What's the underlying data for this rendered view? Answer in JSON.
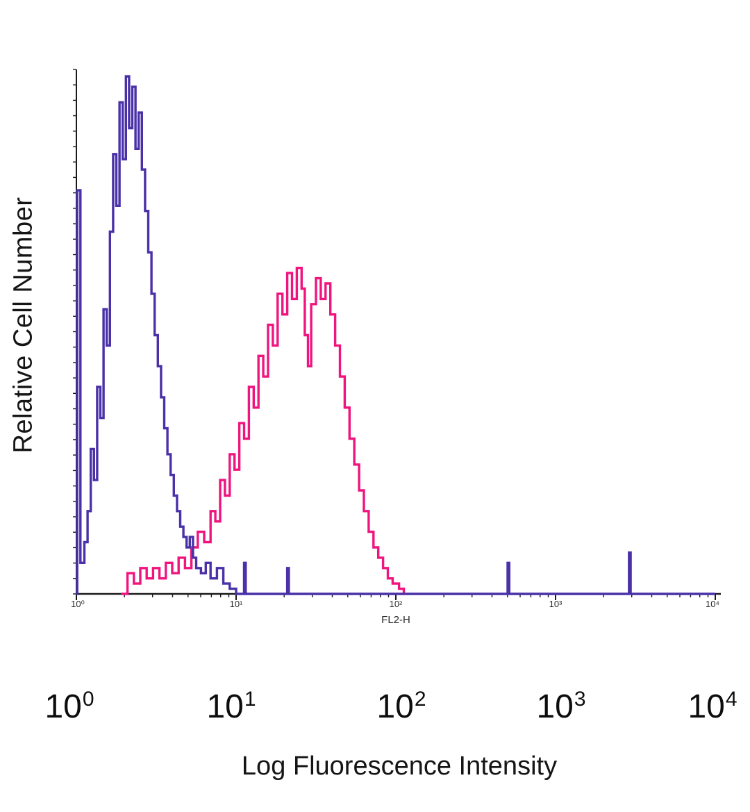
{
  "figure": {
    "ylabel": "Relative Cell Number",
    "xlabel": "Log Fluorescence Intensity",
    "inner_axis_label": "FL2-H",
    "inner_ticks": [
      "10⁰",
      "10¹",
      "10²",
      "10³",
      "10⁴"
    ],
    "outer_ticks": [
      {
        "base": "10",
        "exp": "0"
      },
      {
        "base": "10",
        "exp": "1"
      },
      {
        "base": "10",
        "exp": "2"
      },
      {
        "base": "10",
        "exp": "3"
      },
      {
        "base": "10",
        "exp": "4"
      }
    ]
  },
  "chart_data": {
    "type": "line",
    "subtype": "flow-cytometry-histogram-overlay",
    "title": "",
    "xlabel": "Log Fluorescence Intensity",
    "ylabel": "Relative Cell Number",
    "xscale": "log10",
    "xlim": [
      1,
      10000
    ],
    "ylim": [
      0,
      1
    ],
    "grid": false,
    "legend": "none",
    "axis_color": "#1a1a1a",
    "series": [
      {
        "name": "pink-histogram",
        "color": "#F0147E",
        "peak_x_log10": 1.4,
        "peak_height": 0.64,
        "points": [
          [
            0.28,
            0.0
          ],
          [
            0.32,
            0.04
          ],
          [
            0.36,
            0.02
          ],
          [
            0.4,
            0.05
          ],
          [
            0.44,
            0.03
          ],
          [
            0.48,
            0.05
          ],
          [
            0.52,
            0.03
          ],
          [
            0.56,
            0.06
          ],
          [
            0.6,
            0.04
          ],
          [
            0.64,
            0.07
          ],
          [
            0.68,
            0.05
          ],
          [
            0.72,
            0.09
          ],
          [
            0.76,
            0.12
          ],
          [
            0.8,
            0.1
          ],
          [
            0.84,
            0.16
          ],
          [
            0.87,
            0.14
          ],
          [
            0.9,
            0.22
          ],
          [
            0.93,
            0.19
          ],
          [
            0.96,
            0.27
          ],
          [
            0.99,
            0.24
          ],
          [
            1.02,
            0.33
          ],
          [
            1.05,
            0.3
          ],
          [
            1.08,
            0.4
          ],
          [
            1.11,
            0.36
          ],
          [
            1.14,
            0.46
          ],
          [
            1.17,
            0.42
          ],
          [
            1.2,
            0.52
          ],
          [
            1.23,
            0.48
          ],
          [
            1.26,
            0.58
          ],
          [
            1.29,
            0.54
          ],
          [
            1.32,
            0.62
          ],
          [
            1.35,
            0.57
          ],
          [
            1.38,
            0.63
          ],
          [
            1.41,
            0.59
          ],
          [
            1.43,
            0.5
          ],
          [
            1.45,
            0.44
          ],
          [
            1.47,
            0.56
          ],
          [
            1.5,
            0.61
          ],
          [
            1.53,
            0.57
          ],
          [
            1.56,
            0.6
          ],
          [
            1.59,
            0.54
          ],
          [
            1.62,
            0.48
          ],
          [
            1.65,
            0.42
          ],
          [
            1.68,
            0.36
          ],
          [
            1.71,
            0.3
          ],
          [
            1.74,
            0.25
          ],
          [
            1.77,
            0.2
          ],
          [
            1.8,
            0.16
          ],
          [
            1.83,
            0.12
          ],
          [
            1.86,
            0.09
          ],
          [
            1.89,
            0.07
          ],
          [
            1.92,
            0.05
          ],
          [
            1.95,
            0.03
          ],
          [
            1.98,
            0.02
          ],
          [
            2.02,
            0.01
          ],
          [
            2.05,
            0.0
          ]
        ]
      },
      {
        "name": "purple-histogram",
        "color": "#4A31A8",
        "peak_x_log10": 0.35,
        "peak_height": 1.0,
        "points": [
          [
            0.0,
            0.0
          ],
          [
            0.005,
            0.78
          ],
          [
            0.02,
            0.78
          ],
          [
            0.025,
            0.06
          ],
          [
            0.05,
            0.1
          ],
          [
            0.07,
            0.16
          ],
          [
            0.09,
            0.28
          ],
          [
            0.11,
            0.22
          ],
          [
            0.13,
            0.4
          ],
          [
            0.15,
            0.34
          ],
          [
            0.17,
            0.55
          ],
          [
            0.19,
            0.48
          ],
          [
            0.21,
            0.7
          ],
          [
            0.23,
            0.85
          ],
          [
            0.25,
            0.75
          ],
          [
            0.27,
            0.95
          ],
          [
            0.29,
            0.84
          ],
          [
            0.31,
            1.0
          ],
          [
            0.33,
            0.9
          ],
          [
            0.35,
            0.98
          ],
          [
            0.37,
            0.86
          ],
          [
            0.39,
            0.93
          ],
          [
            0.41,
            0.82
          ],
          [
            0.43,
            0.74
          ],
          [
            0.45,
            0.66
          ],
          [
            0.47,
            0.58
          ],
          [
            0.49,
            0.5
          ],
          [
            0.51,
            0.44
          ],
          [
            0.53,
            0.38
          ],
          [
            0.55,
            0.32
          ],
          [
            0.57,
            0.27
          ],
          [
            0.59,
            0.23
          ],
          [
            0.61,
            0.19
          ],
          [
            0.63,
            0.16
          ],
          [
            0.65,
            0.13
          ],
          [
            0.67,
            0.11
          ],
          [
            0.69,
            0.09
          ],
          [
            0.71,
            0.11
          ],
          [
            0.73,
            0.07
          ],
          [
            0.75,
            0.05
          ],
          [
            0.78,
            0.04
          ],
          [
            0.81,
            0.06
          ],
          [
            0.84,
            0.03
          ],
          [
            0.88,
            0.05
          ],
          [
            0.92,
            0.02
          ],
          [
            0.96,
            0.01
          ],
          [
            1.0,
            0.0
          ],
          [
            1.04,
            0.0
          ],
          [
            1.05,
            0.06
          ],
          [
            1.06,
            0.0
          ],
          [
            1.31,
            0.0
          ],
          [
            1.32,
            0.05
          ],
          [
            1.33,
            0.0
          ],
          [
            2.69,
            0.0
          ],
          [
            2.7,
            0.06
          ],
          [
            2.71,
            0.0
          ],
          [
            3.45,
            0.0
          ],
          [
            3.46,
            0.08
          ],
          [
            3.47,
            0.0
          ],
          [
            4.0,
            0.0
          ]
        ]
      }
    ]
  }
}
